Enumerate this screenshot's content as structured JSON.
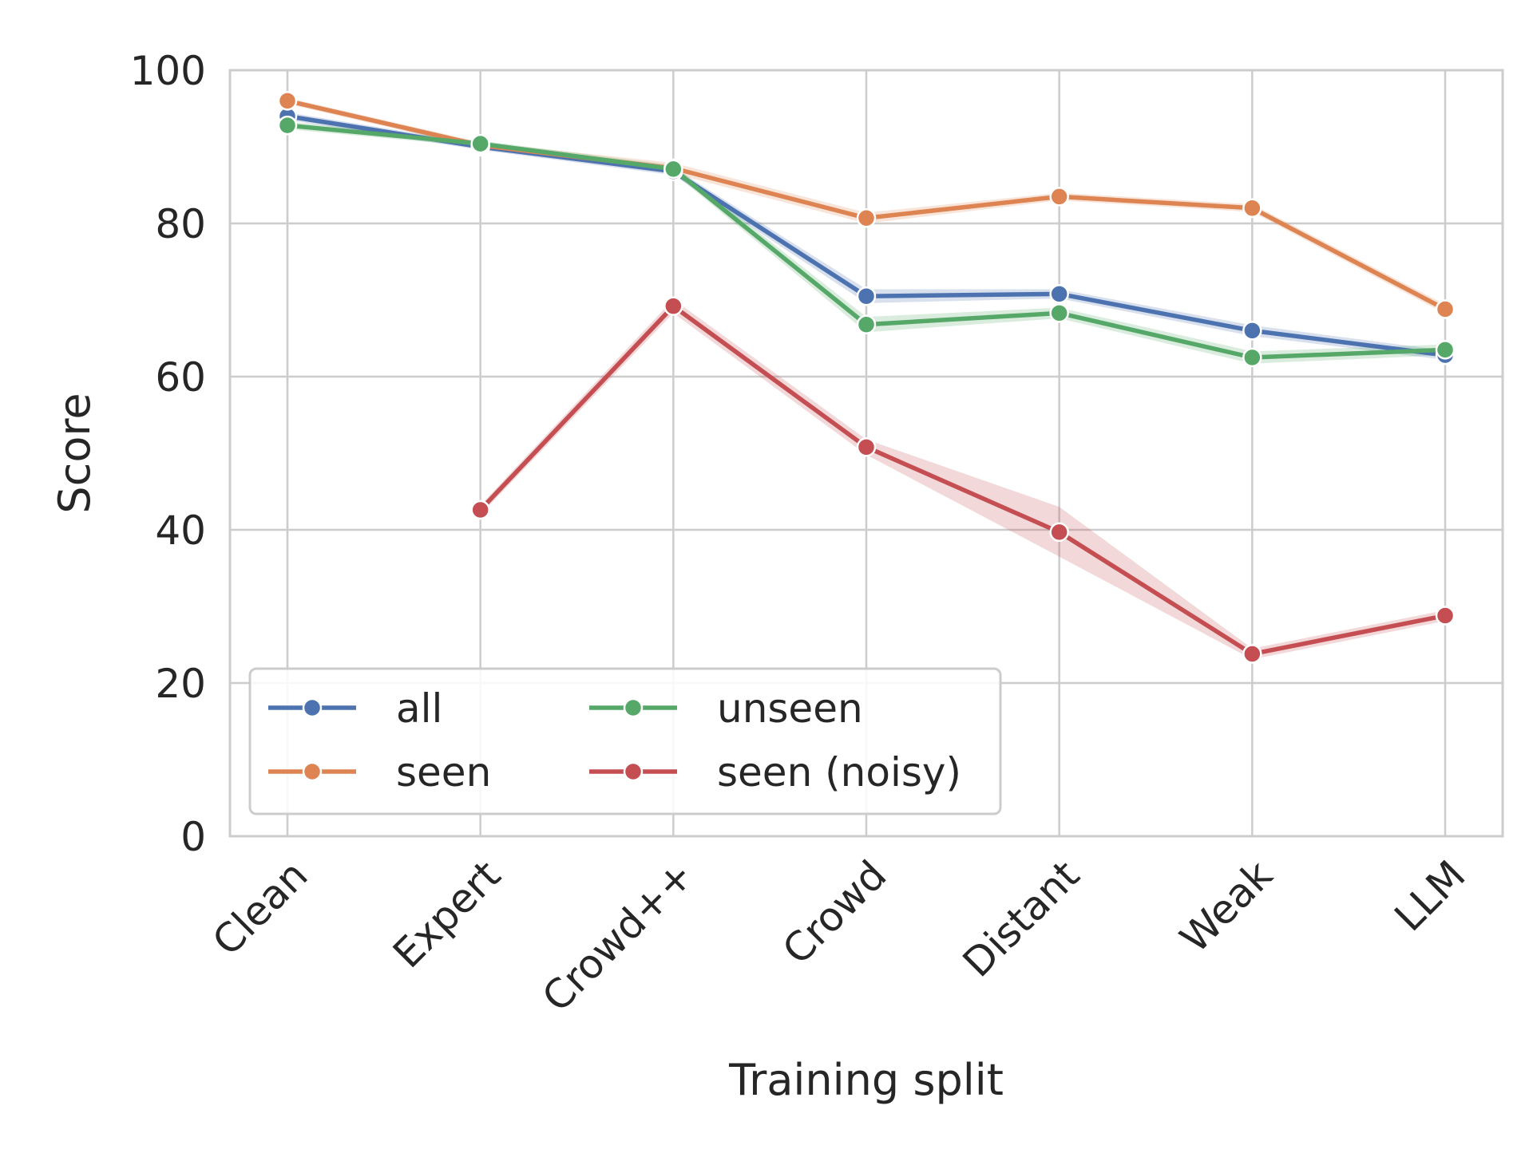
{
  "chart_data": {
    "type": "line",
    "title": "",
    "xlabel": "Training split",
    "ylabel": "Score",
    "categories": [
      "Clean",
      "Expert",
      "Crowd++",
      "Crowd",
      "Distant",
      "Weak",
      "LLM"
    ],
    "ylim": [
      0,
      100
    ],
    "yticks": [
      0,
      20,
      40,
      60,
      80,
      100
    ],
    "grid": true,
    "legend": {
      "placement": "lower-left",
      "columns": 2
    },
    "series": [
      {
        "name": "all",
        "color": "#4c72b0",
        "values": [
          94.0,
          90.0,
          86.8,
          70.5,
          70.8,
          66.0,
          62.8
        ],
        "ci_low": [
          93.5,
          89.6,
          86.3,
          69.6,
          70.2,
          65.3,
          62.2
        ],
        "ci_high": [
          94.5,
          90.4,
          87.3,
          71.4,
          71.4,
          66.7,
          63.4
        ]
      },
      {
        "name": "seen",
        "color": "#dd8452",
        "values": [
          96.0,
          90.2,
          87.2,
          80.7,
          83.5,
          82.0,
          68.8
        ],
        "ci_low": [
          95.6,
          89.8,
          86.5,
          80.0,
          83.0,
          81.5,
          68.2
        ],
        "ci_high": [
          96.4,
          90.6,
          87.9,
          81.4,
          84.0,
          82.5,
          69.4
        ]
      },
      {
        "name": "unseen",
        "color": "#55a868",
        "values": [
          92.8,
          90.4,
          87.1,
          66.8,
          68.3,
          62.5,
          63.5
        ],
        "ci_low": [
          92.3,
          90.0,
          86.6,
          65.8,
          67.6,
          61.7,
          62.8
        ],
        "ci_high": [
          93.3,
          90.8,
          87.6,
          67.8,
          69.0,
          63.3,
          64.2
        ]
      },
      {
        "name": "seen (noisy)",
        "color": "#c44e52",
        "values": [
          null,
          42.6,
          69.2,
          50.8,
          39.7,
          23.8,
          28.8
        ],
        "ci_low": [
          null,
          42.0,
          68.3,
          49.8,
          36.5,
          23.1,
          28.1
        ],
        "ci_high": [
          null,
          43.2,
          70.1,
          51.8,
          43.0,
          24.5,
          29.5
        ]
      }
    ]
  }
}
